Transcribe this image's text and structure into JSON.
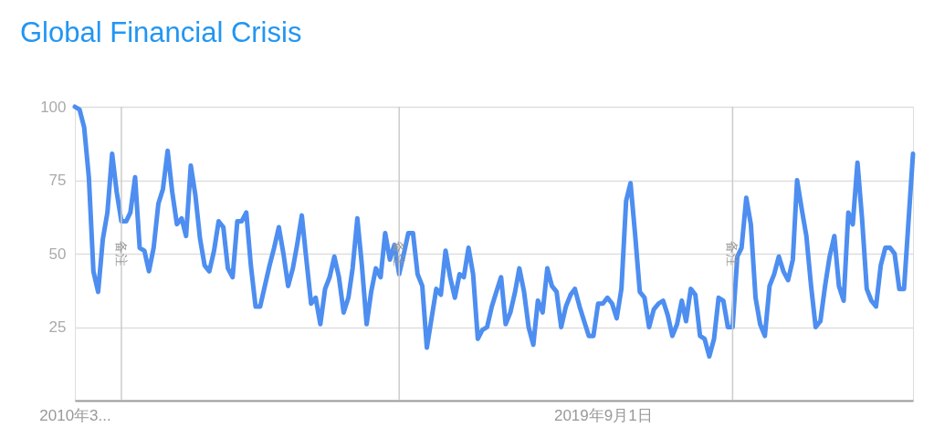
{
  "chart_data": {
    "type": "line",
    "title": "Global Financial Crisis",
    "x": [
      "2010-03",
      "2010-04",
      "2010-05",
      "2010-06",
      "2010-07",
      "2010-08",
      "2010-09",
      "2010-10",
      "2010-11",
      "2010-12",
      "2011-01",
      "2011-02",
      "2011-03",
      "2011-04",
      "2011-05",
      "2011-06",
      "2011-07",
      "2011-08",
      "2011-09",
      "2011-10",
      "2011-11",
      "2011-12",
      "2012-01",
      "2012-02",
      "2012-03",
      "2012-04",
      "2012-05",
      "2012-06",
      "2012-07",
      "2012-08",
      "2012-09",
      "2012-10",
      "2012-11",
      "2012-12",
      "2013-01",
      "2013-02",
      "2013-03",
      "2013-04",
      "2013-05",
      "2013-06",
      "2013-07",
      "2013-08",
      "2013-09",
      "2013-10",
      "2013-11",
      "2013-12",
      "2014-01",
      "2014-02",
      "2014-03",
      "2014-04",
      "2014-05",
      "2014-06",
      "2014-07",
      "2014-08",
      "2014-09",
      "2014-10",
      "2014-11",
      "2014-12",
      "2015-01",
      "2015-02",
      "2015-03",
      "2015-04",
      "2015-05",
      "2015-06",
      "2015-07",
      "2015-08",
      "2015-09",
      "2015-10",
      "2015-11",
      "2015-12",
      "2016-01",
      "2016-02",
      "2016-03",
      "2016-04",
      "2016-05",
      "2016-06",
      "2016-07",
      "2016-08",
      "2016-09",
      "2016-10",
      "2016-11",
      "2016-12",
      "2017-01",
      "2017-02",
      "2017-03",
      "2017-04",
      "2017-05",
      "2017-06",
      "2017-07",
      "2017-08",
      "2017-09",
      "2017-10",
      "2017-11",
      "2017-12",
      "2018-01",
      "2018-02",
      "2018-03",
      "2018-04",
      "2018-05",
      "2018-06",
      "2018-07",
      "2018-08",
      "2018-09",
      "2018-10",
      "2018-11",
      "2018-12",
      "2019-01",
      "2019-02",
      "2019-03",
      "2019-04",
      "2019-05",
      "2019-06",
      "2019-07",
      "2019-08",
      "2019-09",
      "2019-10",
      "2019-11",
      "2019-12",
      "2020-01",
      "2020-02",
      "2020-03",
      "2020-04",
      "2020-05",
      "2020-06",
      "2020-07",
      "2020-08",
      "2020-09",
      "2020-10",
      "2020-11",
      "2020-12",
      "2021-01",
      "2021-02",
      "2021-03",
      "2021-04",
      "2021-05",
      "2021-06",
      "2021-07",
      "2021-08",
      "2021-09",
      "2021-10",
      "2021-11",
      "2021-12",
      "2022-01",
      "2022-02",
      "2022-03",
      "2022-04",
      "2022-05",
      "2022-06",
      "2022-07",
      "2022-08",
      "2022-09",
      "2022-10",
      "2022-11",
      "2022-12",
      "2023-01",
      "2023-02",
      "2023-03",
      "2023-04",
      "2023-05",
      "2023-06",
      "2023-07",
      "2023-08",
      "2023-09",
      "2023-10",
      "2023-11",
      "2023-12",
      "2024-01",
      "2024-02",
      "2024-03",
      "2024-04",
      "2024-05",
      "2024-06",
      "2024-07",
      "2024-08",
      "2024-09",
      "2024-10",
      "2024-11",
      "2024-12",
      "2025-01",
      "2025-02",
      "2025-04"
    ],
    "series": [
      {
        "color": "#4d8ef0",
        "values": [
          100,
          99,
          93,
          76,
          44,
          37,
          55,
          64,
          84,
          71,
          61,
          61,
          64,
          76,
          52,
          51,
          44,
          52,
          67,
          72,
          85,
          71,
          60,
          62,
          56,
          80,
          70,
          55,
          46,
          44,
          51,
          61,
          59,
          45,
          42,
          61,
          61,
          64,
          46,
          32,
          32,
          39,
          46,
          52,
          59,
          50,
          39,
          45,
          53,
          63,
          48,
          33,
          35,
          26,
          38,
          42,
          49,
          42,
          30,
          35,
          45,
          62,
          46,
          26,
          37,
          45,
          42,
          57,
          48,
          53,
          43,
          50,
          57,
          57,
          43,
          39,
          18,
          28,
          38,
          36,
          51,
          42,
          35,
          43,
          42,
          52,
          43,
          21,
          24,
          25,
          32,
          37,
          42,
          26,
          30,
          37,
          45,
          37,
          25,
          19,
          34,
          30,
          45,
          39,
          37,
          25,
          32,
          36,
          38,
          32,
          27,
          22,
          22,
          33,
          33,
          35,
          33,
          28,
          38,
          68,
          74,
          56,
          37,
          35,
          25,
          31,
          33,
          34,
          29,
          22,
          26,
          34,
          27,
          38,
          36,
          22,
          21,
          15,
          21,
          35,
          34,
          25,
          25,
          49,
          52,
          69,
          60,
          35,
          26,
          22,
          39,
          43,
          49,
          44,
          41,
          48,
          75,
          65,
          56,
          39,
          25,
          27,
          39,
          49,
          56,
          39,
          34,
          64,
          60,
          81,
          62,
          38,
          34,
          32,
          46,
          52,
          52,
          50,
          38,
          38,
          84
        ]
      }
    ],
    "ylim": [
      0,
      100
    ],
    "yticks": [
      25,
      50,
      75,
      100
    ],
    "xlim": [
      "2010-03",
      "2025-04"
    ],
    "xticks": [
      {
        "value": "2010-03",
        "label": "2010年3..."
      },
      {
        "value": "2019-09-01",
        "label": "2019年9月1日"
      }
    ],
    "grid": "y",
    "line_style": "solid",
    "marker": "none",
    "ref_lines": [
      {
        "axis": "x",
        "value": "2011-01",
        "label": "备注",
        "color": "#cccccc"
      },
      {
        "axis": "x",
        "value": "2016-01",
        "label": "备注",
        "color": "#cccccc"
      },
      {
        "axis": "x",
        "value": "2022-01",
        "label": "备注",
        "color": "#cccccc"
      }
    ]
  }
}
